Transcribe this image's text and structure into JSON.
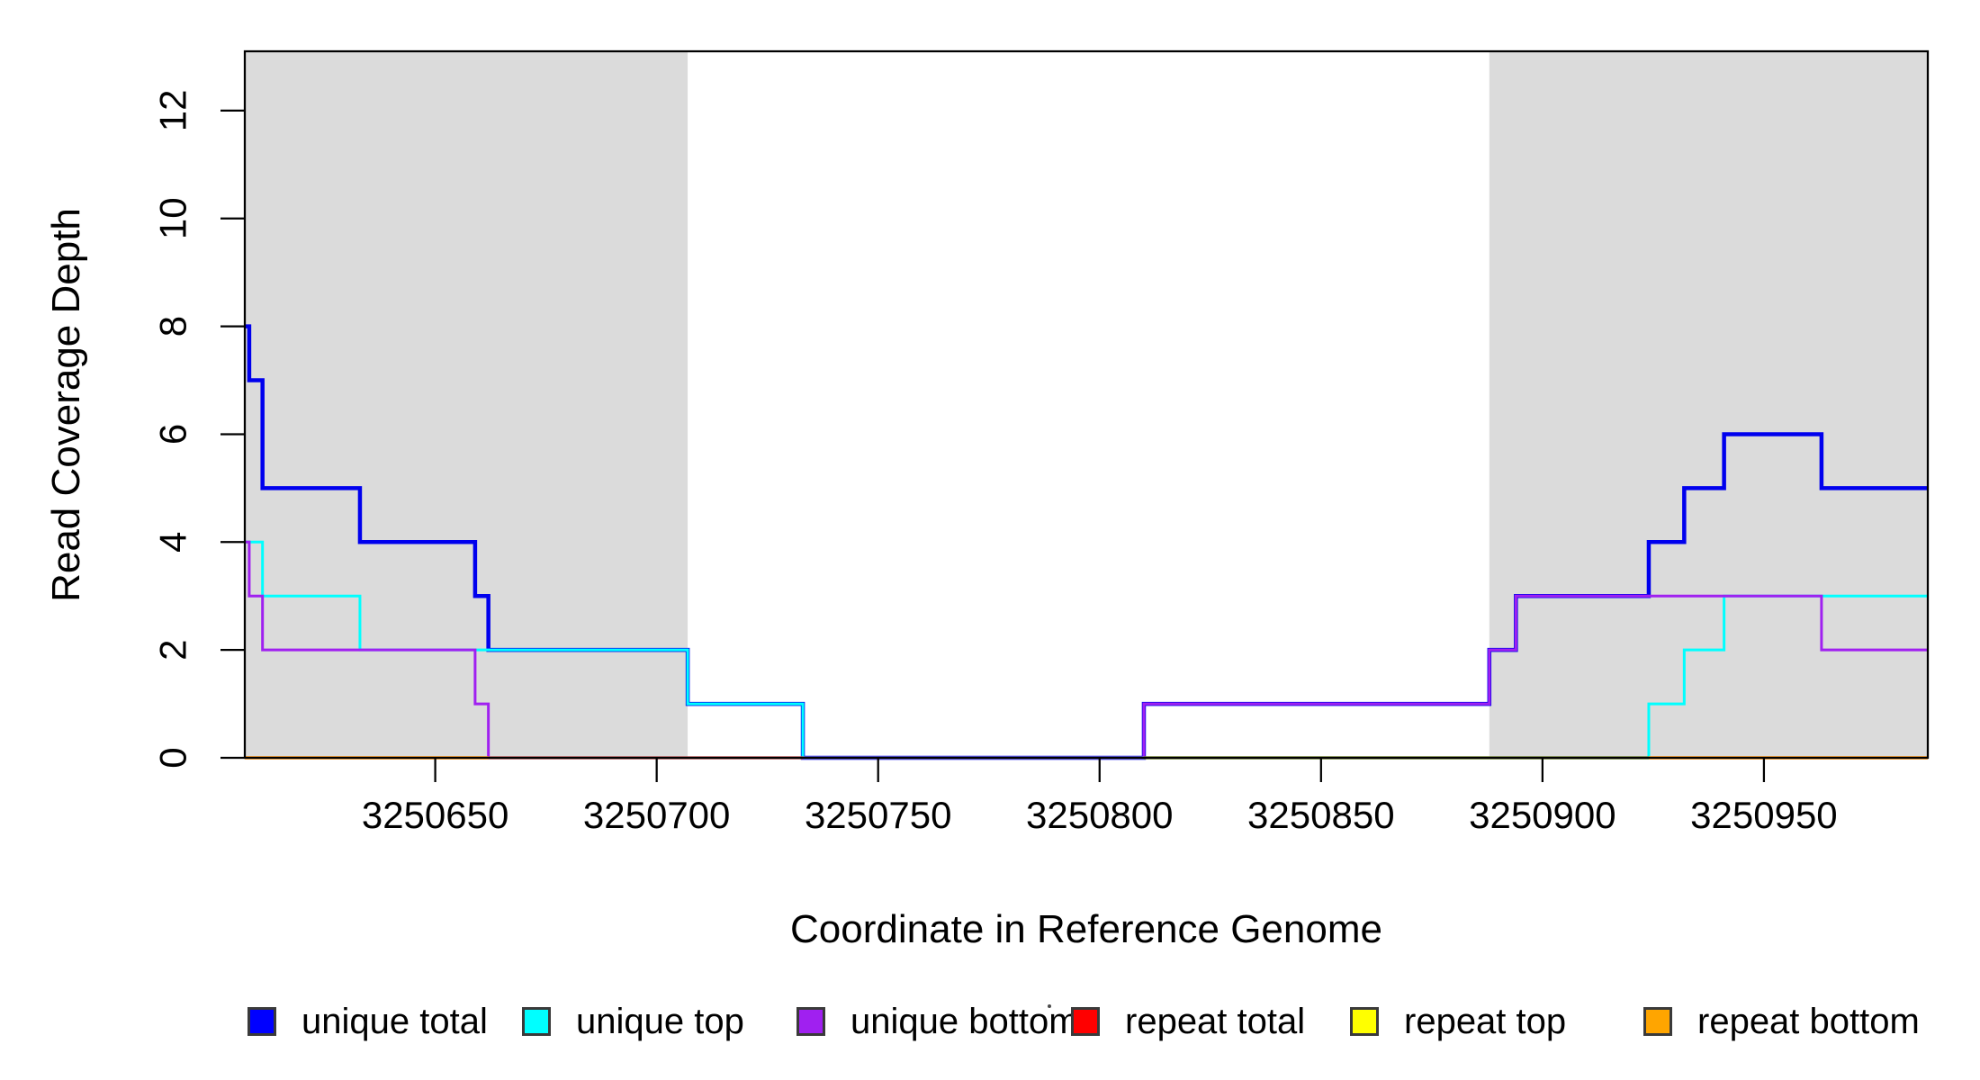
{
  "figure": {
    "background": "#ffffff",
    "plot_shade_color": "#dbdbdb"
  },
  "axes": {
    "x": {
      "title": "Coordinate in Reference Genome",
      "ticks": [
        3250650,
        3250700,
        3250750,
        3250800,
        3250850,
        3250900,
        3250950
      ]
    },
    "y": {
      "title": "Read Coverage Depth",
      "ticks": [
        0,
        2,
        4,
        6,
        8,
        10,
        12
      ]
    }
  },
  "legend": {
    "items": [
      {
        "label": "unique total",
        "color": "#0000FF"
      },
      {
        "label": "unique top",
        "color": "#00FFFF"
      },
      {
        "label": "unique bottom",
        "color": "#A020F0"
      },
      {
        "label": "repeat total",
        "color": "#FF0000"
      },
      {
        "label": "repeat top",
        "color": "#FFFF00"
      },
      {
        "label": "repeat bottom",
        "color": "#FFA500"
      }
    ]
  },
  "chart_data": {
    "type": "line",
    "subtype": "step",
    "title": "",
    "xlabel": "Coordinate in Reference Genome",
    "ylabel": "Read Coverage Depth",
    "xlim": [
      3250607,
      3250987
    ],
    "ylim": [
      0,
      13.1
    ],
    "x_ticks": [
      3250650,
      3250700,
      3250750,
      3250800,
      3250850,
      3250900,
      3250950
    ],
    "y_ticks": [
      0,
      2,
      4,
      6,
      8,
      10,
      12
    ],
    "grid": false,
    "legend_position": "bottom",
    "shaded_regions": [
      {
        "from": 3250607,
        "to": 3250707
      },
      {
        "from": 3250888,
        "to": 3250987
      }
    ],
    "series": [
      {
        "name": "repeat top",
        "color": "#FFFF00",
        "width": 3,
        "steps": [
          [
            3250607,
            0
          ]
        ]
      },
      {
        "name": "repeat bottom",
        "color": "#FF8C00",
        "width": 3,
        "steps": [
          [
            3250607,
            0
          ]
        ]
      },
      {
        "name": "repeat total",
        "color": "#FF0000",
        "width": 3,
        "steps": [
          [
            3250607,
            0
          ]
        ]
      },
      {
        "name": "unique total",
        "color": "#0000EE",
        "width": 4.5,
        "steps": [
          [
            3250607,
            8
          ],
          [
            3250608,
            7
          ],
          [
            3250611,
            5
          ],
          [
            3250633,
            4
          ],
          [
            3250659,
            3
          ],
          [
            3250662,
            2
          ],
          [
            3250707,
            1
          ],
          [
            3250733,
            0
          ],
          [
            3250810,
            1
          ],
          [
            3250888,
            2
          ],
          [
            3250894,
            3
          ],
          [
            3250924,
            4
          ],
          [
            3250932,
            5
          ],
          [
            3250941,
            6
          ],
          [
            3250963,
            5
          ]
        ]
      },
      {
        "name": "unique top",
        "color": "#00FFFF",
        "width": 3,
        "steps": [
          [
            3250607,
            4
          ],
          [
            3250611,
            3
          ],
          [
            3250633,
            2
          ],
          [
            3250707,
            1
          ],
          [
            3250733,
            0
          ],
          [
            3250924,
            1
          ],
          [
            3250932,
            2
          ],
          [
            3250941,
            3
          ]
        ]
      },
      {
        "name": "unique bottom",
        "color": "#A020F0",
        "width": 3,
        "steps": [
          [
            3250607,
            4
          ],
          [
            3250608,
            3
          ],
          [
            3250611,
            2
          ],
          [
            3250659,
            1
          ],
          [
            3250662,
            0
          ],
          [
            3250810,
            1
          ],
          [
            3250888,
            2
          ],
          [
            3250894,
            3
          ],
          [
            3250963,
            2
          ]
        ]
      }
    ],
    "baseline_blend_segments": [
      {
        "from": 3250607,
        "to": 3250662,
        "color": "#FF8C00"
      },
      {
        "from": 3250662,
        "to": 3250733,
        "color": "#C66060"
      },
      {
        "from": 3250733,
        "to": 3250810,
        "color": "#7673CE"
      },
      {
        "from": 3250810,
        "to": 3250924,
        "color": "#7D8D3B"
      },
      {
        "from": 3250924,
        "to": 3250987,
        "color": "#FF8C00"
      }
    ]
  }
}
